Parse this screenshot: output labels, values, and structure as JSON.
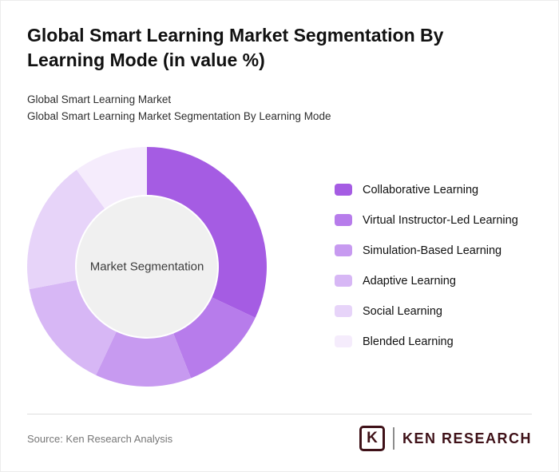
{
  "title": "Global Smart Learning Market Segmentation By Learning Mode (in value %)",
  "subtitle_line1": "Global Smart Learning Market",
  "subtitle_line2": "Global Smart Learning Market Segmentation By Learning Mode",
  "chart_data": {
    "type": "pie",
    "donut": true,
    "title": "Global Smart Learning Market Segmentation By Learning Mode (in value %)",
    "center_label": "Market Segmentation",
    "legend_position": "right",
    "start_angle_deg": 0,
    "direction": "clockwise",
    "categories": [
      "Collaborative Learning",
      "Virtual Instructor-Led Learning",
      "Simulation-Based Learning",
      "Adaptive Learning",
      "Social Learning",
      "Blended Learning"
    ],
    "values": [
      32,
      12,
      13,
      15,
      18,
      10
    ],
    "colors": [
      "#a55ce3",
      "#b77ceb",
      "#c79af0",
      "#d7b7f5",
      "#e7d4f9",
      "#f5ecfc"
    ],
    "center_circle_color": "#f0f0f0"
  },
  "footer": {
    "source": "Source: Ken Research Analysis",
    "logo_letter": "K",
    "logo_text": "KEN RESEARCH",
    "logo_color": "#3f1118"
  }
}
